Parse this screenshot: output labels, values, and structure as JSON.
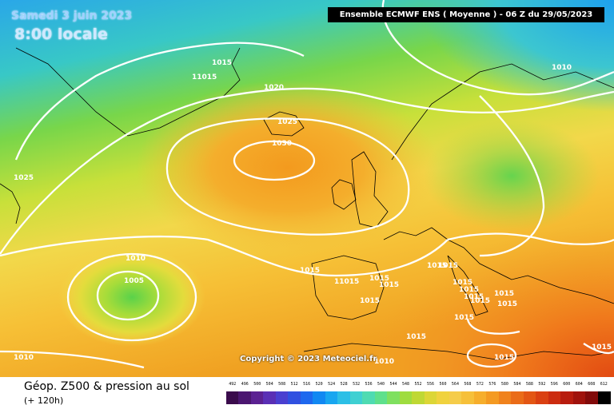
{
  "header": {
    "date": "Samedi 3 juin 2023",
    "time": "8:00 locale",
    "model": "Ensemble ECMWF ENS  ( Moyenne )  - 06 Z du 29/05/2023"
  },
  "copyright": "Copyright © 2023 Meteociel.fr",
  "footer": {
    "title": "Géop. Z500 & pression au sol",
    "subtitle": "(+ 120h)"
  },
  "legend": {
    "ticks": [
      "492",
      "496",
      "500",
      "504",
      "508",
      "512",
      "516",
      "520",
      "524",
      "528",
      "532",
      "536",
      "540",
      "544",
      "548",
      "552",
      "556",
      "560",
      "564",
      "568",
      "572",
      "576",
      "580",
      "584",
      "588",
      "592",
      "596",
      "600",
      "604",
      "608",
      "612"
    ],
    "colors": [
      "#3a0b4c",
      "#4b1670",
      "#5b2192",
      "#5a2fb5",
      "#4a3fd0",
      "#3050e0",
      "#1e68ee",
      "#1188f2",
      "#18a6f0",
      "#2cbfe6",
      "#3fd0d2",
      "#4fdbb2",
      "#5fe08c",
      "#7fe05f",
      "#9fdc3f",
      "#bfd834",
      "#dcd636",
      "#f0d23e",
      "#f5cc4a",
      "#f6c03a",
      "#f6ae2c",
      "#f49a22",
      "#f0821c",
      "#ea6c18",
      "#e35614",
      "#da4012",
      "#cc2c10",
      "#b81c0e",
      "#a0120c",
      "#820a0a",
      "#000000"
    ]
  },
  "isobars": [
    {
      "value": "1015",
      "note": "Greenland"
    },
    {
      "value": "11015",
      "note": "Greenland coast"
    },
    {
      "value": "1020"
    },
    {
      "value": "1025"
    },
    {
      "value": "1030"
    },
    {
      "value": "1025",
      "note": "west"
    },
    {
      "value": "1010",
      "note": "Scandinavia"
    },
    {
      "value": "1010",
      "note": "Atlantic low ring"
    },
    {
      "value": "1005"
    },
    {
      "value": "1010",
      "note": "southwest corner"
    },
    {
      "value": "1015",
      "note": "Bay of Biscay"
    },
    {
      "value": "11015",
      "note": "Iberia north"
    },
    {
      "value": "1015",
      "note": "France"
    },
    {
      "value": "1015",
      "note": "France 2"
    },
    {
      "value": "1015",
      "note": "Iberia"
    },
    {
      "value": "1015",
      "note": "Alps A"
    },
    {
      "value": "1015",
      "note": "Alps B"
    },
    {
      "value": "1015",
      "note": "Italy A"
    },
    {
      "value": "1015",
      "note": "Italy B"
    },
    {
      "value": "1015",
      "note": "Italy C"
    },
    {
      "value": "1015",
      "note": "Italy D"
    },
    {
      "value": "1015",
      "note": "Balkans A"
    },
    {
      "value": "1015",
      "note": "Balkans B"
    },
    {
      "value": "1015",
      "note": "Greece"
    },
    {
      "value": "1015",
      "note": "Mediterranean A"
    },
    {
      "value": "1015",
      "note": "Mediterranean B"
    },
    {
      "value": "1010",
      "note": "North Africa"
    },
    {
      "value": "1015",
      "note": "Turkey"
    }
  ]
}
